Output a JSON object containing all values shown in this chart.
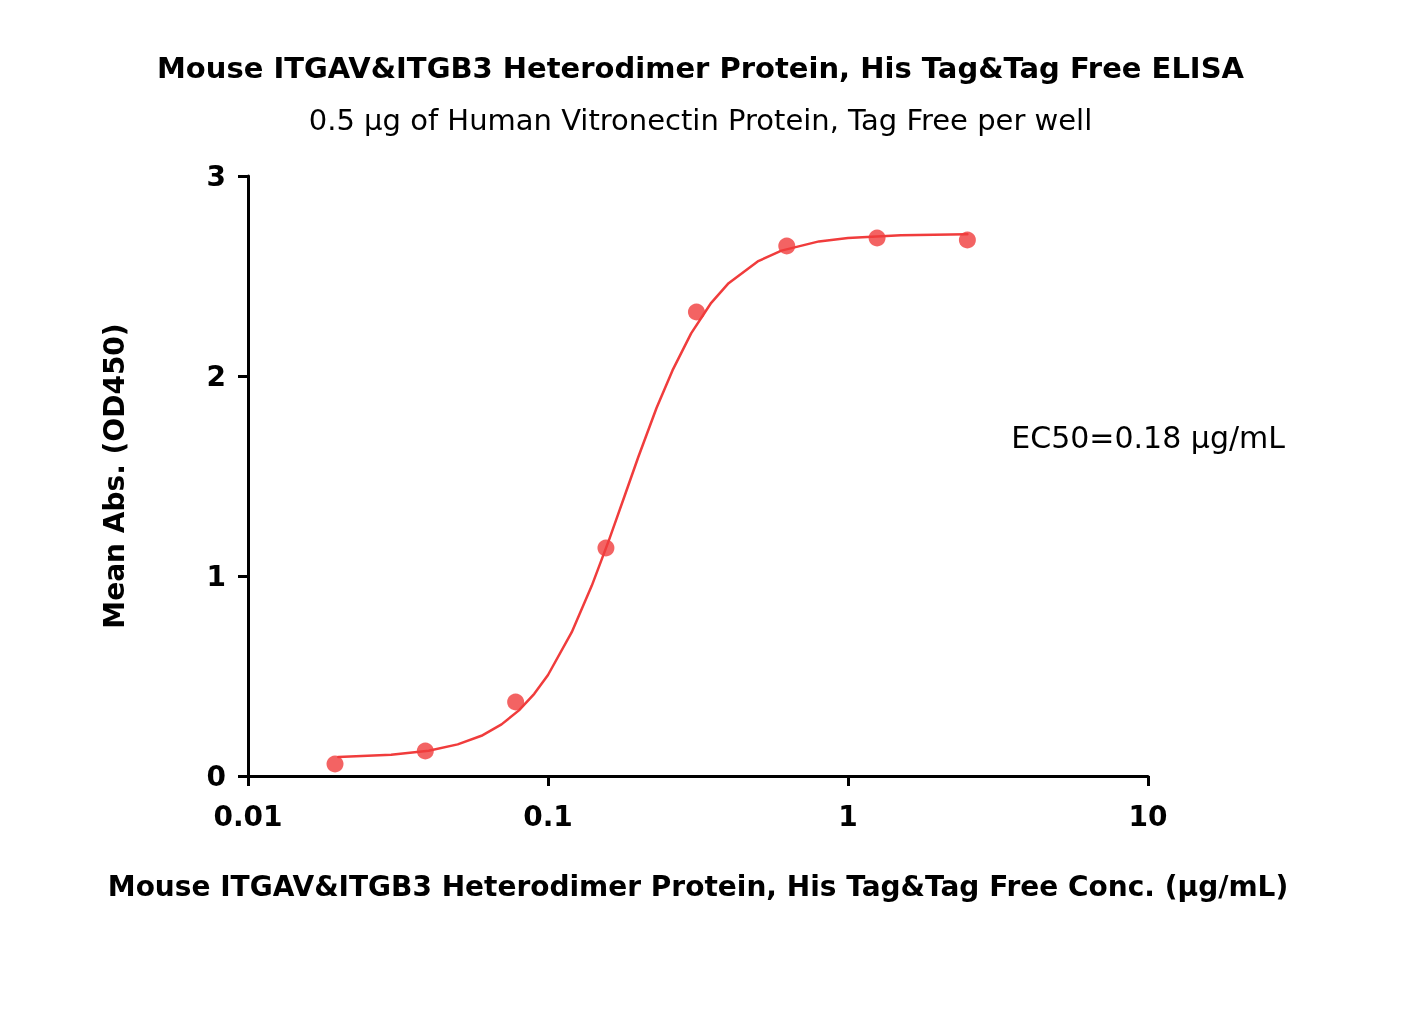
{
  "chart_data": {
    "type": "scatter",
    "title": "Mouse ITGAV&ITGB3 Heterodimer Protein, His Tag&Tag Free ELISA",
    "subtitle": "0.5 μg of Human Vitronectin Protein, Tag Free per well",
    "xlabel": "Mouse ITGAV&ITGB3 Heterodimer Protein, His Tag&Tag Free Conc. (μg/mL)",
    "ylabel": "Mean Abs. (OD450)",
    "annotations": [
      "EC50=0.18 μg/mL"
    ],
    "log": "x",
    "grid": false,
    "marker": "circle",
    "xlim": [
      0.01,
      10
    ],
    "xticks": [
      0.01,
      0.1,
      1,
      10
    ],
    "ylim": [
      0,
      3
    ],
    "yticks": [
      0,
      1,
      2,
      3
    ],
    "series": [
      {
        "color": "#f03c3c",
        "x": [
          0.0195,
          0.039,
          0.078,
          0.156,
          0.3125,
          0.625,
          1.25,
          2.5
        ],
        "values": [
          0.06,
          0.125,
          0.37,
          1.14,
          2.32,
          2.65,
          2.69,
          2.68
        ]
      },
      {
        "type": "line",
        "color": "#f03c3c",
        "marker": "none",
        "line_style": "solid",
        "x": [
          0.02,
          0.03,
          0.04,
          0.05,
          0.06,
          0.07,
          0.08,
          0.09,
          0.1,
          0.12,
          0.14,
          0.16,
          0.18,
          0.2,
          0.23,
          0.26,
          0.3,
          0.35,
          0.4,
          0.5,
          0.6,
          0.8,
          1.0,
          1.5,
          2.5
        ],
        "values": [
          0.095,
          0.106,
          0.126,
          0.158,
          0.201,
          0.258,
          0.328,
          0.411,
          0.505,
          0.719,
          0.952,
          1.183,
          1.4,
          1.595,
          1.84,
          2.028,
          2.213,
          2.366,
          2.464,
          2.573,
          2.627,
          2.673,
          2.69,
          2.704,
          2.709
        ]
      }
    ]
  }
}
